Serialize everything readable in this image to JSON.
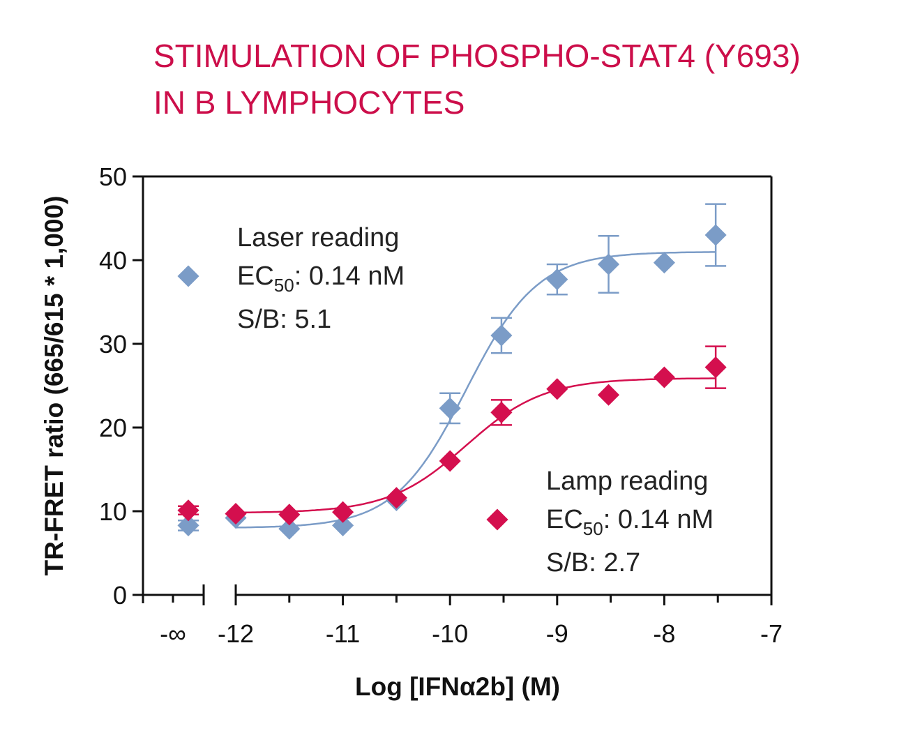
{
  "chart_data": {
    "type": "scatter",
    "title_lines": [
      "STIMULATION OF PHOSPHO-STAT4 (Y693)",
      "IN B LYMPHOCYTES"
    ],
    "title_color": "#cc0e4a",
    "xlabel": "Log [IFNα2b] (M)",
    "ylabel": "TR-FRET ratio (665/615 * 1,000)",
    "xlim": [
      -12,
      -7
    ],
    "ylim": [
      0,
      50
    ],
    "x_ticks": [
      -12,
      -11,
      -10,
      -9,
      -8,
      -7
    ],
    "x_tick_labels": [
      "-12",
      "-11",
      "-10",
      "-9",
      "-8",
      "-7"
    ],
    "x_break_label": "-∞",
    "y_ticks": [
      0,
      10,
      20,
      30,
      40,
      50
    ],
    "y_tick_labels": [
      "0",
      "10",
      "20",
      "30",
      "40",
      "50"
    ],
    "grid": false,
    "series": [
      {
        "name": "Laser reading",
        "ec50_label": "EC",
        "ec50_sub": "50",
        "ec50_value": ": 0.14 nM",
        "sb_label": "S/B: 5.1",
        "color": "#7b9cc7",
        "baseline_point": {
          "y": 8.3,
          "err": 0.6
        },
        "points": [
          {
            "x": -12.0,
            "y": 9.2,
            "err": 0
          },
          {
            "x": -11.5,
            "y": 7.9,
            "err": 0
          },
          {
            "x": -11.0,
            "y": 8.3,
            "err": 0
          },
          {
            "x": -10.5,
            "y": 11.3,
            "err": 0
          },
          {
            "x": -10.0,
            "y": 22.3,
            "err": 1.8
          },
          {
            "x": -9.52,
            "y": 31.0,
            "err": 2.1
          },
          {
            "x": -9.0,
            "y": 37.7,
            "err": 1.8
          },
          {
            "x": -8.52,
            "y": 39.5,
            "err": 3.4
          },
          {
            "x": -8.0,
            "y": 39.7,
            "err": 0
          },
          {
            "x": -7.52,
            "y": 43.0,
            "err": 3.7
          }
        ],
        "fit": {
          "bottom": 8.0,
          "top": 41.0,
          "logEC50": -9.85,
          "hill": 1.3
        }
      },
      {
        "name": "Lamp reading",
        "ec50_label": "EC",
        "ec50_sub": "50",
        "ec50_value": ": 0.14 nM",
        "sb_label": "S/B: 2.7",
        "color": "#d40f4e",
        "baseline_point": {
          "y": 10.1,
          "err": 0.5
        },
        "points": [
          {
            "x": -12.0,
            "y": 9.7,
            "err": 0
          },
          {
            "x": -11.5,
            "y": 9.6,
            "err": 0
          },
          {
            "x": -11.0,
            "y": 9.9,
            "err": 0
          },
          {
            "x": -10.5,
            "y": 11.6,
            "err": 0
          },
          {
            "x": -10.0,
            "y": 16.0,
            "err": 0
          },
          {
            "x": -9.52,
            "y": 21.8,
            "err": 1.5
          },
          {
            "x": -9.0,
            "y": 24.6,
            "err": 0
          },
          {
            "x": -8.52,
            "y": 23.9,
            "err": 0
          },
          {
            "x": -8.0,
            "y": 26.0,
            "err": 0
          },
          {
            "x": -7.52,
            "y": 27.2,
            "err": 2.5
          }
        ],
        "fit": {
          "bottom": 9.8,
          "top": 25.9,
          "logEC50": -9.85,
          "hill": 1.2
        }
      }
    ]
  }
}
